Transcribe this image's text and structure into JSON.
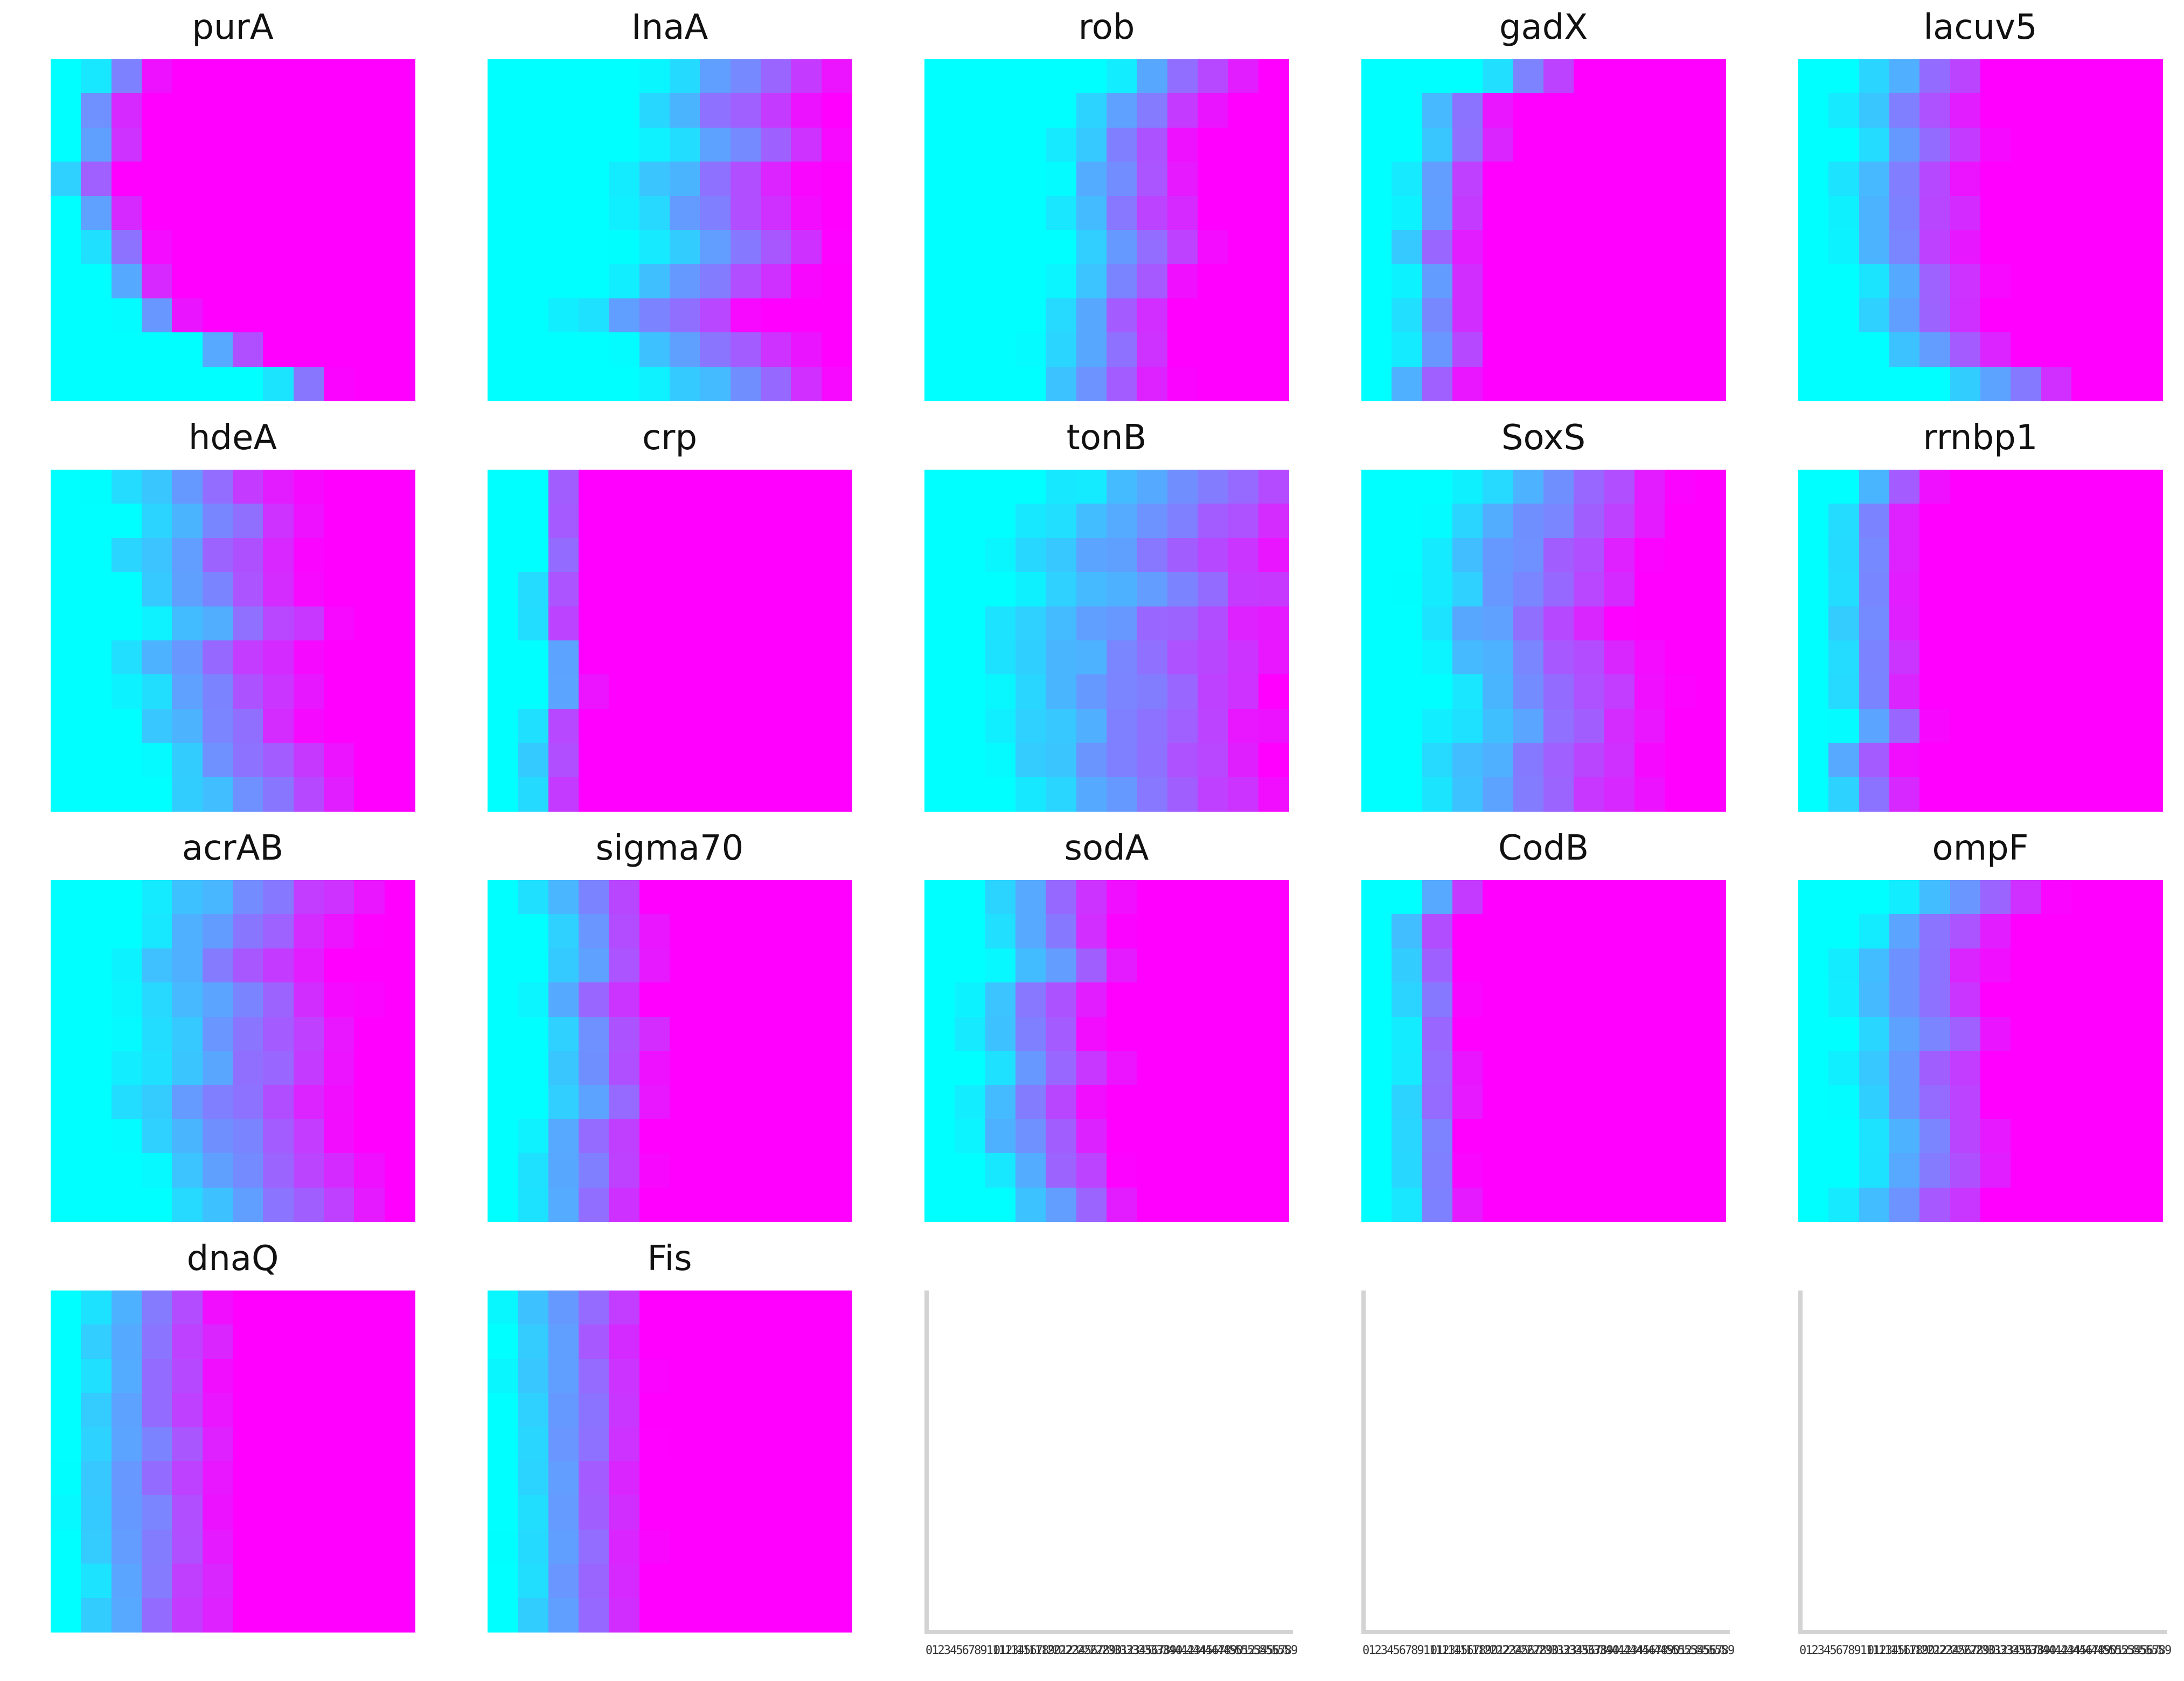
{
  "colormap": {
    "low": "#00ffff",
    "high": "#ff00ff",
    "axis_color": "#d3d3d3"
  },
  "chart_data": {
    "type": "heatmap",
    "panels": [
      {
        "title": "purA",
        "pattern": "purA"
      },
      {
        "title": "InaA",
        "pattern": "inaA"
      },
      {
        "title": "rob",
        "pattern": "rob"
      },
      {
        "title": "gadX",
        "pattern": "gadX"
      },
      {
        "title": "lacuv5",
        "pattern": "lacuv5"
      },
      {
        "title": "hdeA",
        "pattern": "hdeA"
      },
      {
        "title": "crp",
        "pattern": "crp"
      },
      {
        "title": "tonB",
        "pattern": "tonB"
      },
      {
        "title": "SoxS",
        "pattern": "soxS"
      },
      {
        "title": "rrnbp1",
        "pattern": "rrnbp1"
      },
      {
        "title": "acrAB",
        "pattern": "acrAB"
      },
      {
        "title": "sigma70",
        "pattern": "sigma70"
      },
      {
        "title": "sodA",
        "pattern": "sodA"
      },
      {
        "title": "CodB",
        "pattern": "codB"
      },
      {
        "title": "ompF",
        "pattern": "ompF"
      },
      {
        "title": "dnaQ",
        "pattern": "dnaQ"
      },
      {
        "title": "Fis",
        "pattern": "fis"
      }
    ],
    "empty_panels": 3,
    "empty_x_ticks": [
      "0",
      "1",
      "2",
      "3",
      "4",
      "5",
      "6",
      "7",
      "8",
      "9",
      "10",
      "11",
      "12",
      "13",
      "14",
      "15",
      "16",
      "17",
      "18",
      "19",
      "20",
      "21",
      "22",
      "23",
      "24",
      "25",
      "26",
      "27",
      "28",
      "29",
      "30",
      "31",
      "32",
      "33",
      "34",
      "35",
      "36",
      "37",
      "38",
      "39",
      "40",
      "41",
      "42",
      "43",
      "44",
      "45",
      "46",
      "47",
      "48",
      "49",
      "50",
      "51",
      "52",
      "53",
      "54",
      "55",
      "56",
      "57",
      "58",
      "59"
    ],
    "grid": false
  }
}
